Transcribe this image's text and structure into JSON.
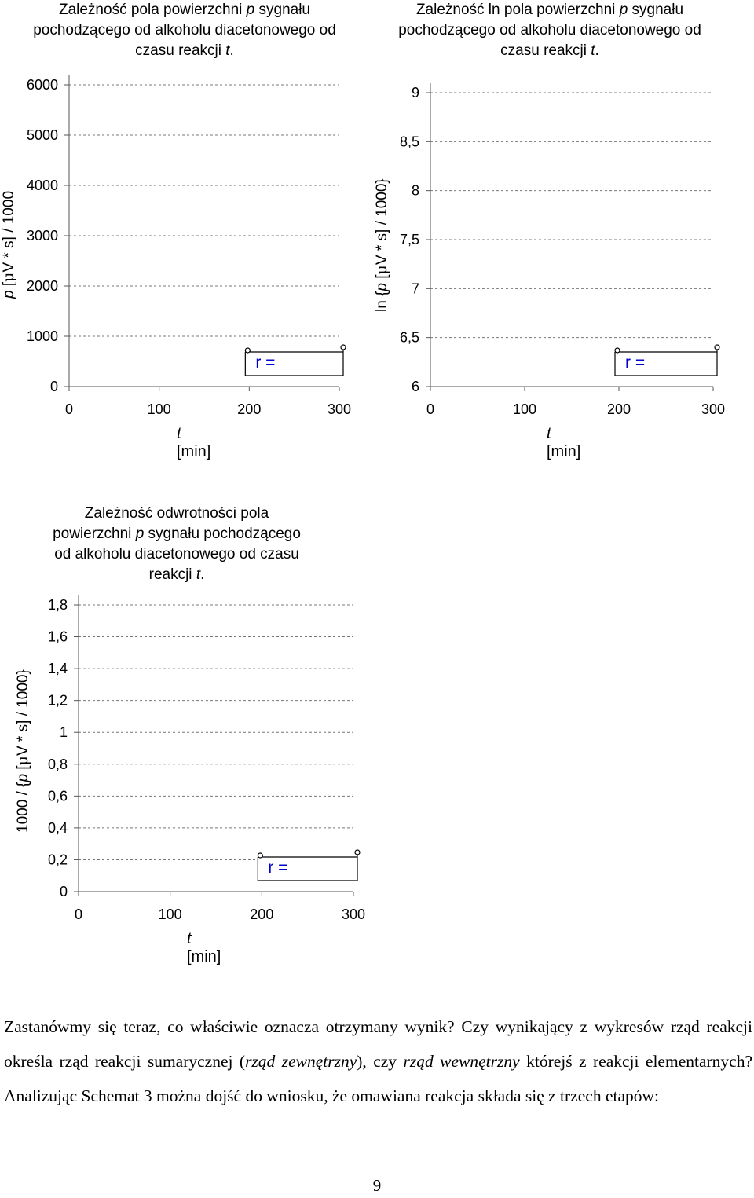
{
  "chart_data": [
    {
      "type": "scatter",
      "title_parts": [
        "Zależność pola powierzchni ",
        "p",
        " sygnału pochodzącego od alkoholu diacetonowego od czasu reakcji ",
        "t",
        "."
      ],
      "ylabel_parts": [
        "p",
        " [",
        "μ",
        "V * s] / 1000"
      ],
      "xlabel_parts": [
        "t",
        " [min]"
      ],
      "y_ticks": [
        "0",
        "1000",
        "2000",
        "3000",
        "4000",
        "5000",
        "6000"
      ],
      "x_ticks": [
        "0",
        "100",
        "200",
        "300"
      ],
      "ylim": [
        0,
        6000
      ],
      "xlim": [
        0,
        300
      ],
      "grid": true,
      "series": [],
      "annotation": "r ="
    },
    {
      "type": "scatter",
      "title_parts": [
        "Zależność ln pola powierzchni ",
        "p",
        " sygnału pochodzącego od alkoholu diacetonowego od czasu reakcji ",
        "t",
        "."
      ],
      "ylabel_parts": [
        "ln {",
        "p",
        " [",
        "μ",
        "V * s] / 1000}"
      ],
      "xlabel_parts": [
        "t",
        " [min]"
      ],
      "y_ticks": [
        "6",
        "6,5",
        "7",
        "7,5",
        "8",
        "8,5",
        "9"
      ],
      "x_ticks": [
        "0",
        "100",
        "200",
        "300"
      ],
      "ylim": [
        6,
        9
      ],
      "xlim": [
        0,
        300
      ],
      "grid": true,
      "series": [],
      "annotation": "r ="
    },
    {
      "type": "scatter",
      "title_parts": [
        "Zależność odwrotności pola powierzchni ",
        "p",
        " sygnału pochodzącego od alkoholu diacetonowego od czasu reakcji ",
        "t",
        "."
      ],
      "ylabel_parts": [
        "1000 / {",
        "p",
        " [",
        "μ",
        "V * s] / 1000}"
      ],
      "xlabel_parts": [
        "t",
        " [min]"
      ],
      "y_ticks": [
        "0",
        "0,2",
        "0,4",
        "0,6",
        "0,8",
        "1",
        "1,2",
        "1,4",
        "1,6",
        "1,8"
      ],
      "x_ticks": [
        "0",
        "100",
        "200",
        "300"
      ],
      "ylim": [
        0,
        1.8
      ],
      "xlim": [
        0,
        300
      ],
      "grid": true,
      "series": [],
      "annotation": "r ="
    }
  ],
  "text": {
    "paragraph": [
      {
        "t": "Zastanówmy się teraz, co właściwie oznacza otrzymany wynik? Czy wynikający z wykresów rząd reakcji określa rząd reakcji sumarycznej (",
        "i": false
      },
      {
        "t": "rząd zewnętrzny",
        "i": true
      },
      {
        "t": "), czy ",
        "i": false
      },
      {
        "t": "rząd wewnętrzny",
        "i": true
      },
      {
        "t": " którejś z reakcji elementarnych? Analizując Schemat 3 można dojść do wniosku, że omawiana reakcja składa się z trzech etapów:",
        "i": false
      }
    ],
    "page_number": "9"
  }
}
